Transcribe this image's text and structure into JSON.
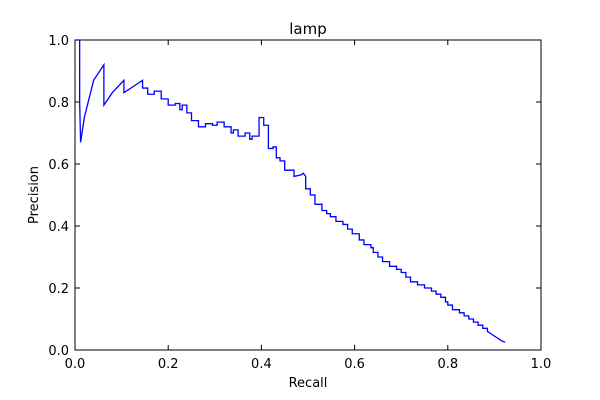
{
  "chart_data": {
    "type": "line",
    "title": "lamp",
    "xlabel": "Recall",
    "ylabel": "Precision",
    "xlim": [
      0.0,
      1.0
    ],
    "ylim": [
      0.0,
      1.0
    ],
    "x_ticks": [
      "0.0",
      "0.2",
      "0.4",
      "0.6",
      "0.8",
      "1.0"
    ],
    "y_ticks": [
      "0.0",
      "0.2",
      "0.4",
      "0.6",
      "0.8",
      "1.0"
    ],
    "grid": false,
    "legend": "none",
    "series": [
      {
        "color": "#0000ff",
        "x": [
          0.0,
          0.01,
          0.01,
          0.012,
          0.02,
          0.04,
          0.062,
          0.062,
          0.08,
          0.105,
          0.105,
          0.125,
          0.145,
          0.145,
          0.156,
          0.156,
          0.17,
          0.17,
          0.185,
          0.185,
          0.2,
          0.2,
          0.215,
          0.215,
          0.225,
          0.225,
          0.23,
          0.23,
          0.24,
          0.24,
          0.25,
          0.25,
          0.265,
          0.265,
          0.28,
          0.28,
          0.295,
          0.295,
          0.305,
          0.305,
          0.32,
          0.32,
          0.335,
          0.335,
          0.34,
          0.34,
          0.35,
          0.35,
          0.365,
          0.365,
          0.375,
          0.375,
          0.38,
          0.38,
          0.395,
          0.395,
          0.405,
          0.405,
          0.415,
          0.415,
          0.425,
          0.425,
          0.432,
          0.432,
          0.44,
          0.44,
          0.45,
          0.45,
          0.47,
          0.47,
          0.485,
          0.49,
          0.495,
          0.495,
          0.505,
          0.505,
          0.515,
          0.515,
          0.53,
          0.53,
          0.54,
          0.54,
          0.548,
          0.548,
          0.56,
          0.56,
          0.575,
          0.575,
          0.585,
          0.585,
          0.595,
          0.595,
          0.61,
          0.61,
          0.62,
          0.62,
          0.635,
          0.635,
          0.64,
          0.64,
          0.65,
          0.65,
          0.66,
          0.66,
          0.675,
          0.675,
          0.69,
          0.69,
          0.7,
          0.7,
          0.71,
          0.71,
          0.72,
          0.72,
          0.735,
          0.735,
          0.75,
          0.75,
          0.765,
          0.765,
          0.775,
          0.775,
          0.785,
          0.785,
          0.795,
          0.795,
          0.8,
          0.8,
          0.81,
          0.81,
          0.825,
          0.825,
          0.835,
          0.835,
          0.845,
          0.845,
          0.855,
          0.855,
          0.865,
          0.865,
          0.875,
          0.875,
          0.885,
          0.885,
          0.895,
          0.905,
          0.915,
          0.923
        ],
        "y": [
          1.0,
          1.0,
          0.8,
          0.67,
          0.75,
          0.87,
          0.92,
          0.79,
          0.83,
          0.87,
          0.83,
          0.85,
          0.87,
          0.845,
          0.845,
          0.825,
          0.825,
          0.835,
          0.835,
          0.81,
          0.81,
          0.79,
          0.79,
          0.795,
          0.795,
          0.775,
          0.775,
          0.79,
          0.79,
          0.765,
          0.765,
          0.74,
          0.74,
          0.72,
          0.72,
          0.73,
          0.73,
          0.725,
          0.725,
          0.735,
          0.735,
          0.72,
          0.72,
          0.7,
          0.7,
          0.71,
          0.71,
          0.69,
          0.69,
          0.7,
          0.7,
          0.68,
          0.68,
          0.69,
          0.69,
          0.75,
          0.75,
          0.725,
          0.725,
          0.65,
          0.65,
          0.655,
          0.655,
          0.62,
          0.62,
          0.61,
          0.61,
          0.58,
          0.58,
          0.56,
          0.565,
          0.57,
          0.56,
          0.52,
          0.52,
          0.5,
          0.5,
          0.47,
          0.47,
          0.45,
          0.45,
          0.44,
          0.44,
          0.43,
          0.43,
          0.415,
          0.415,
          0.405,
          0.405,
          0.39,
          0.39,
          0.375,
          0.375,
          0.355,
          0.355,
          0.34,
          0.34,
          0.33,
          0.33,
          0.315,
          0.315,
          0.3,
          0.3,
          0.285,
          0.285,
          0.27,
          0.27,
          0.26,
          0.26,
          0.25,
          0.25,
          0.235,
          0.235,
          0.22,
          0.22,
          0.21,
          0.21,
          0.2,
          0.2,
          0.19,
          0.19,
          0.18,
          0.18,
          0.17,
          0.17,
          0.155,
          0.155,
          0.145,
          0.145,
          0.13,
          0.13,
          0.12,
          0.12,
          0.11,
          0.11,
          0.1,
          0.1,
          0.09,
          0.09,
          0.08,
          0.08,
          0.07,
          0.07,
          0.06,
          0.05,
          0.04,
          0.03,
          0.025
        ]
      }
    ]
  }
}
